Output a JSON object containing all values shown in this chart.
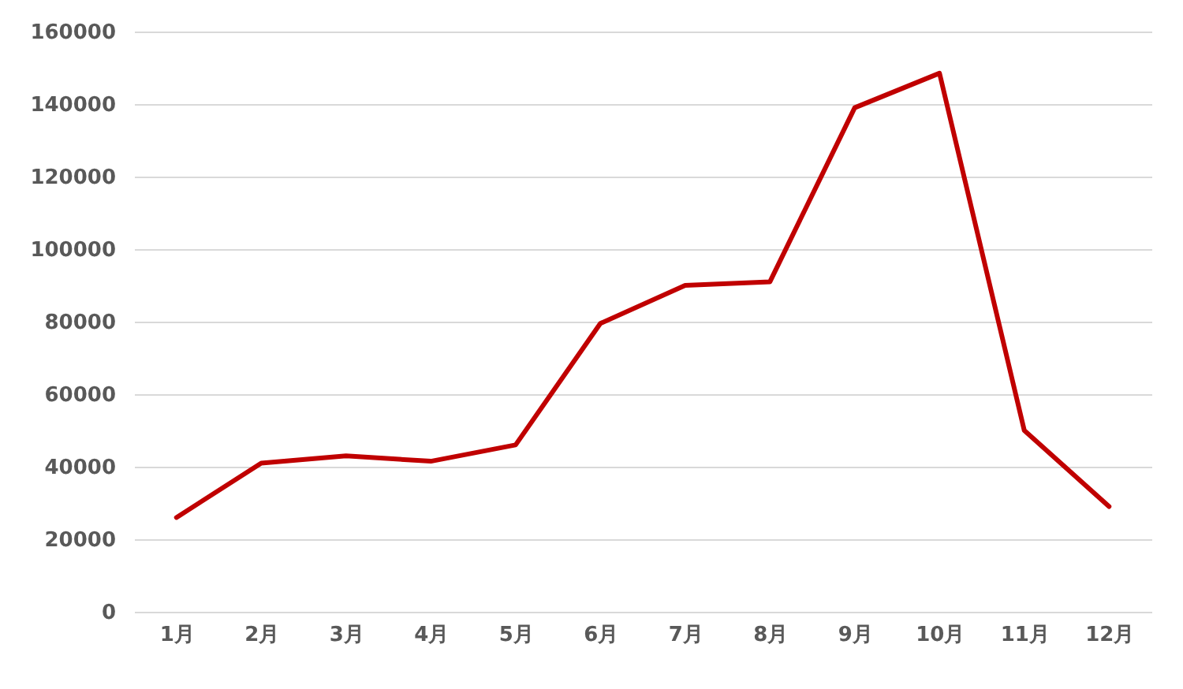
{
  "chart_data": {
    "type": "line",
    "categories": [
      "1月",
      "2月",
      "3月",
      "4月",
      "5月",
      "6月",
      "7月",
      "8月",
      "9月",
      "10月",
      "11月",
      "12月"
    ],
    "series": [
      {
        "color": "#c00000",
        "values": [
          26000,
          41000,
          43000,
          41500,
          46000,
          79500,
          90000,
          91000,
          139000,
          148500,
          50000,
          29000
        ]
      }
    ],
    "ylim": [
      0,
      160000
    ],
    "yticks": [
      0,
      20000,
      40000,
      60000,
      80000,
      100000,
      120000,
      140000,
      160000
    ],
    "grid": "y",
    "marker": "none",
    "line_style": "solid"
  }
}
